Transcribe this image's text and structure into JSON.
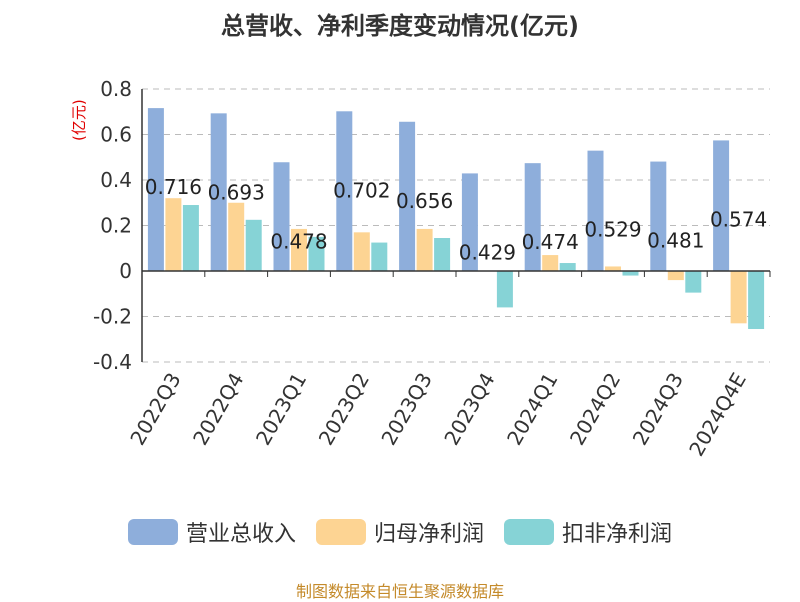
{
  "chart_data": {
    "type": "bar",
    "title": "总营收、净利季度变动情况(亿元)",
    "unit_label": "(亿元)",
    "categories": [
      "2022Q3",
      "2022Q4",
      "2023Q1",
      "2023Q2",
      "2023Q3",
      "2023Q4",
      "2024Q1",
      "2024Q2",
      "2024Q3",
      "2024Q4E"
    ],
    "series": [
      {
        "name": "营业总收入",
        "color": "#8eaedb",
        "values": [
          0.716,
          0.693,
          0.478,
          0.702,
          0.656,
          0.429,
          0.474,
          0.529,
          0.481,
          0.574
        ]
      },
      {
        "name": "归母净利润",
        "color": "#fdd493",
        "values": [
          0.32,
          0.3,
          0.185,
          0.17,
          0.185,
          0.0,
          0.07,
          0.02,
          -0.04,
          -0.23
        ]
      },
      {
        "name": "扣非净利润",
        "color": "#86d3d6",
        "values": [
          0.29,
          0.225,
          0.15,
          0.125,
          0.145,
          -0.16,
          0.035,
          -0.02,
          -0.095,
          -0.255
        ]
      }
    ],
    "data_labels": [
      "0.716",
      "0.693",
      "0.478",
      "0.702",
      "0.656",
      "0.429",
      "0.474",
      "0.529",
      "0.481",
      "0.574"
    ],
    "y_ticks": [
      "0.8",
      "0.6",
      "0.4",
      "0.2",
      "0",
      "-0.2",
      "-0.4"
    ],
    "ylim": [
      -0.4,
      0.8
    ],
    "grid": true,
    "legend_position": "bottom"
  },
  "footer": {
    "source": "制图数据来自恒生聚源数据库"
  }
}
